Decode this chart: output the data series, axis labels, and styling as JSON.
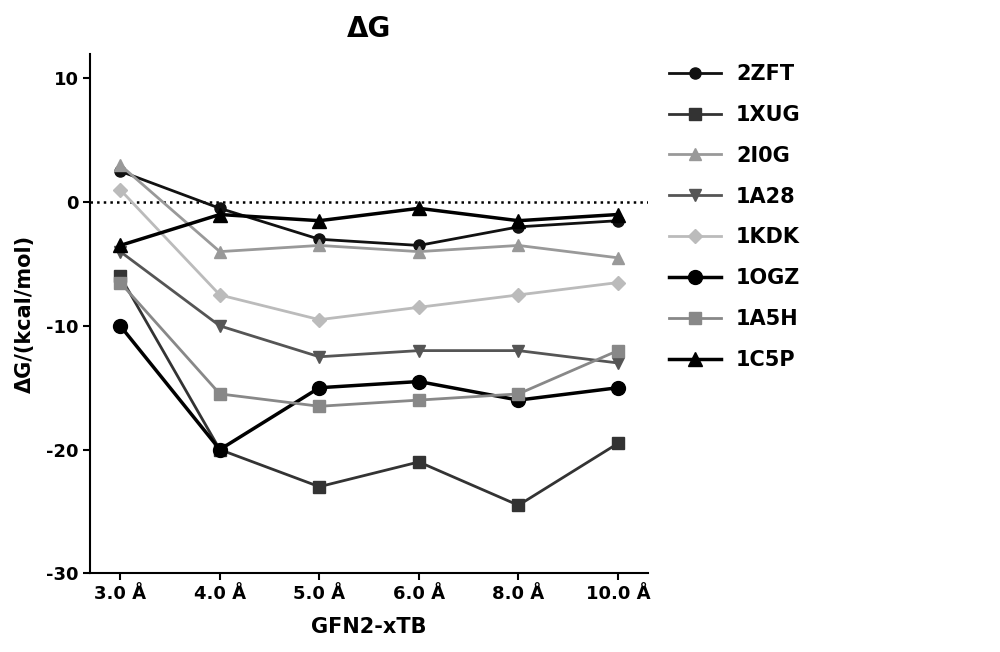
{
  "title": "ΔG",
  "xlabel": "GFN2-xTB",
  "ylabel": "ΔG/(kcal/mol)",
  "x_labels": [
    "3.0 Å",
    "4.0 Å",
    "5.0 Å",
    "6.0 Å",
    "8.0 Å",
    "10.0 Å"
  ],
  "x_values": [
    3.0,
    4.0,
    5.0,
    6.0,
    8.0,
    10.0
  ],
  "ylim": [
    -30,
    12
  ],
  "yticks": [
    -30,
    -20,
    -10,
    0,
    10
  ],
  "series": [
    {
      "label": "2ZFT",
      "color": "#111111",
      "marker": "o",
      "markersize": 8,
      "linewidth": 2.0,
      "values": [
        2.5,
        -0.5,
        -3.0,
        -3.5,
        -2.0,
        -1.5
      ]
    },
    {
      "label": "1XUG",
      "color": "#333333",
      "marker": "s",
      "markersize": 8,
      "linewidth": 2.0,
      "values": [
        -6.0,
        -20.0,
        -23.0,
        -21.0,
        -24.5,
        -19.5
      ]
    },
    {
      "label": "2I0G",
      "color": "#999999",
      "marker": "^",
      "markersize": 8,
      "linewidth": 2.0,
      "values": [
        3.0,
        -4.0,
        -3.5,
        -4.0,
        -3.5,
        -4.5
      ]
    },
    {
      "label": "1A28",
      "color": "#555555",
      "marker": "v",
      "markersize": 8,
      "linewidth": 2.0,
      "values": [
        -4.0,
        -10.0,
        -12.5,
        -12.0,
        -12.0,
        -13.0
      ]
    },
    {
      "label": "1KDK",
      "color": "#bbbbbb",
      "marker": "D",
      "markersize": 7,
      "linewidth": 2.0,
      "values": [
        1.0,
        -7.5,
        -9.5,
        -8.5,
        -7.5,
        -6.5
      ]
    },
    {
      "label": "1OGZ",
      "color": "#000000",
      "marker": "o",
      "markersize": 10,
      "linewidth": 2.5,
      "values": [
        -10.0,
        -20.0,
        -15.0,
        -14.5,
        -16.0,
        -15.0
      ]
    },
    {
      "label": "1A5H",
      "color": "#888888",
      "marker": "s",
      "markersize": 8,
      "linewidth": 2.0,
      "values": [
        -6.5,
        -15.5,
        -16.5,
        -16.0,
        -15.5,
        -12.0
      ]
    },
    {
      "label": "1C5P",
      "color": "#000000",
      "marker": "^",
      "markersize": 10,
      "linewidth": 2.5,
      "values": [
        -3.5,
        -1.0,
        -1.5,
        -0.5,
        -1.5,
        -1.0
      ]
    }
  ],
  "background_color": "#ffffff",
  "title_fontsize": 20,
  "axis_label_fontsize": 15,
  "tick_fontsize": 13,
  "legend_fontsize": 15
}
